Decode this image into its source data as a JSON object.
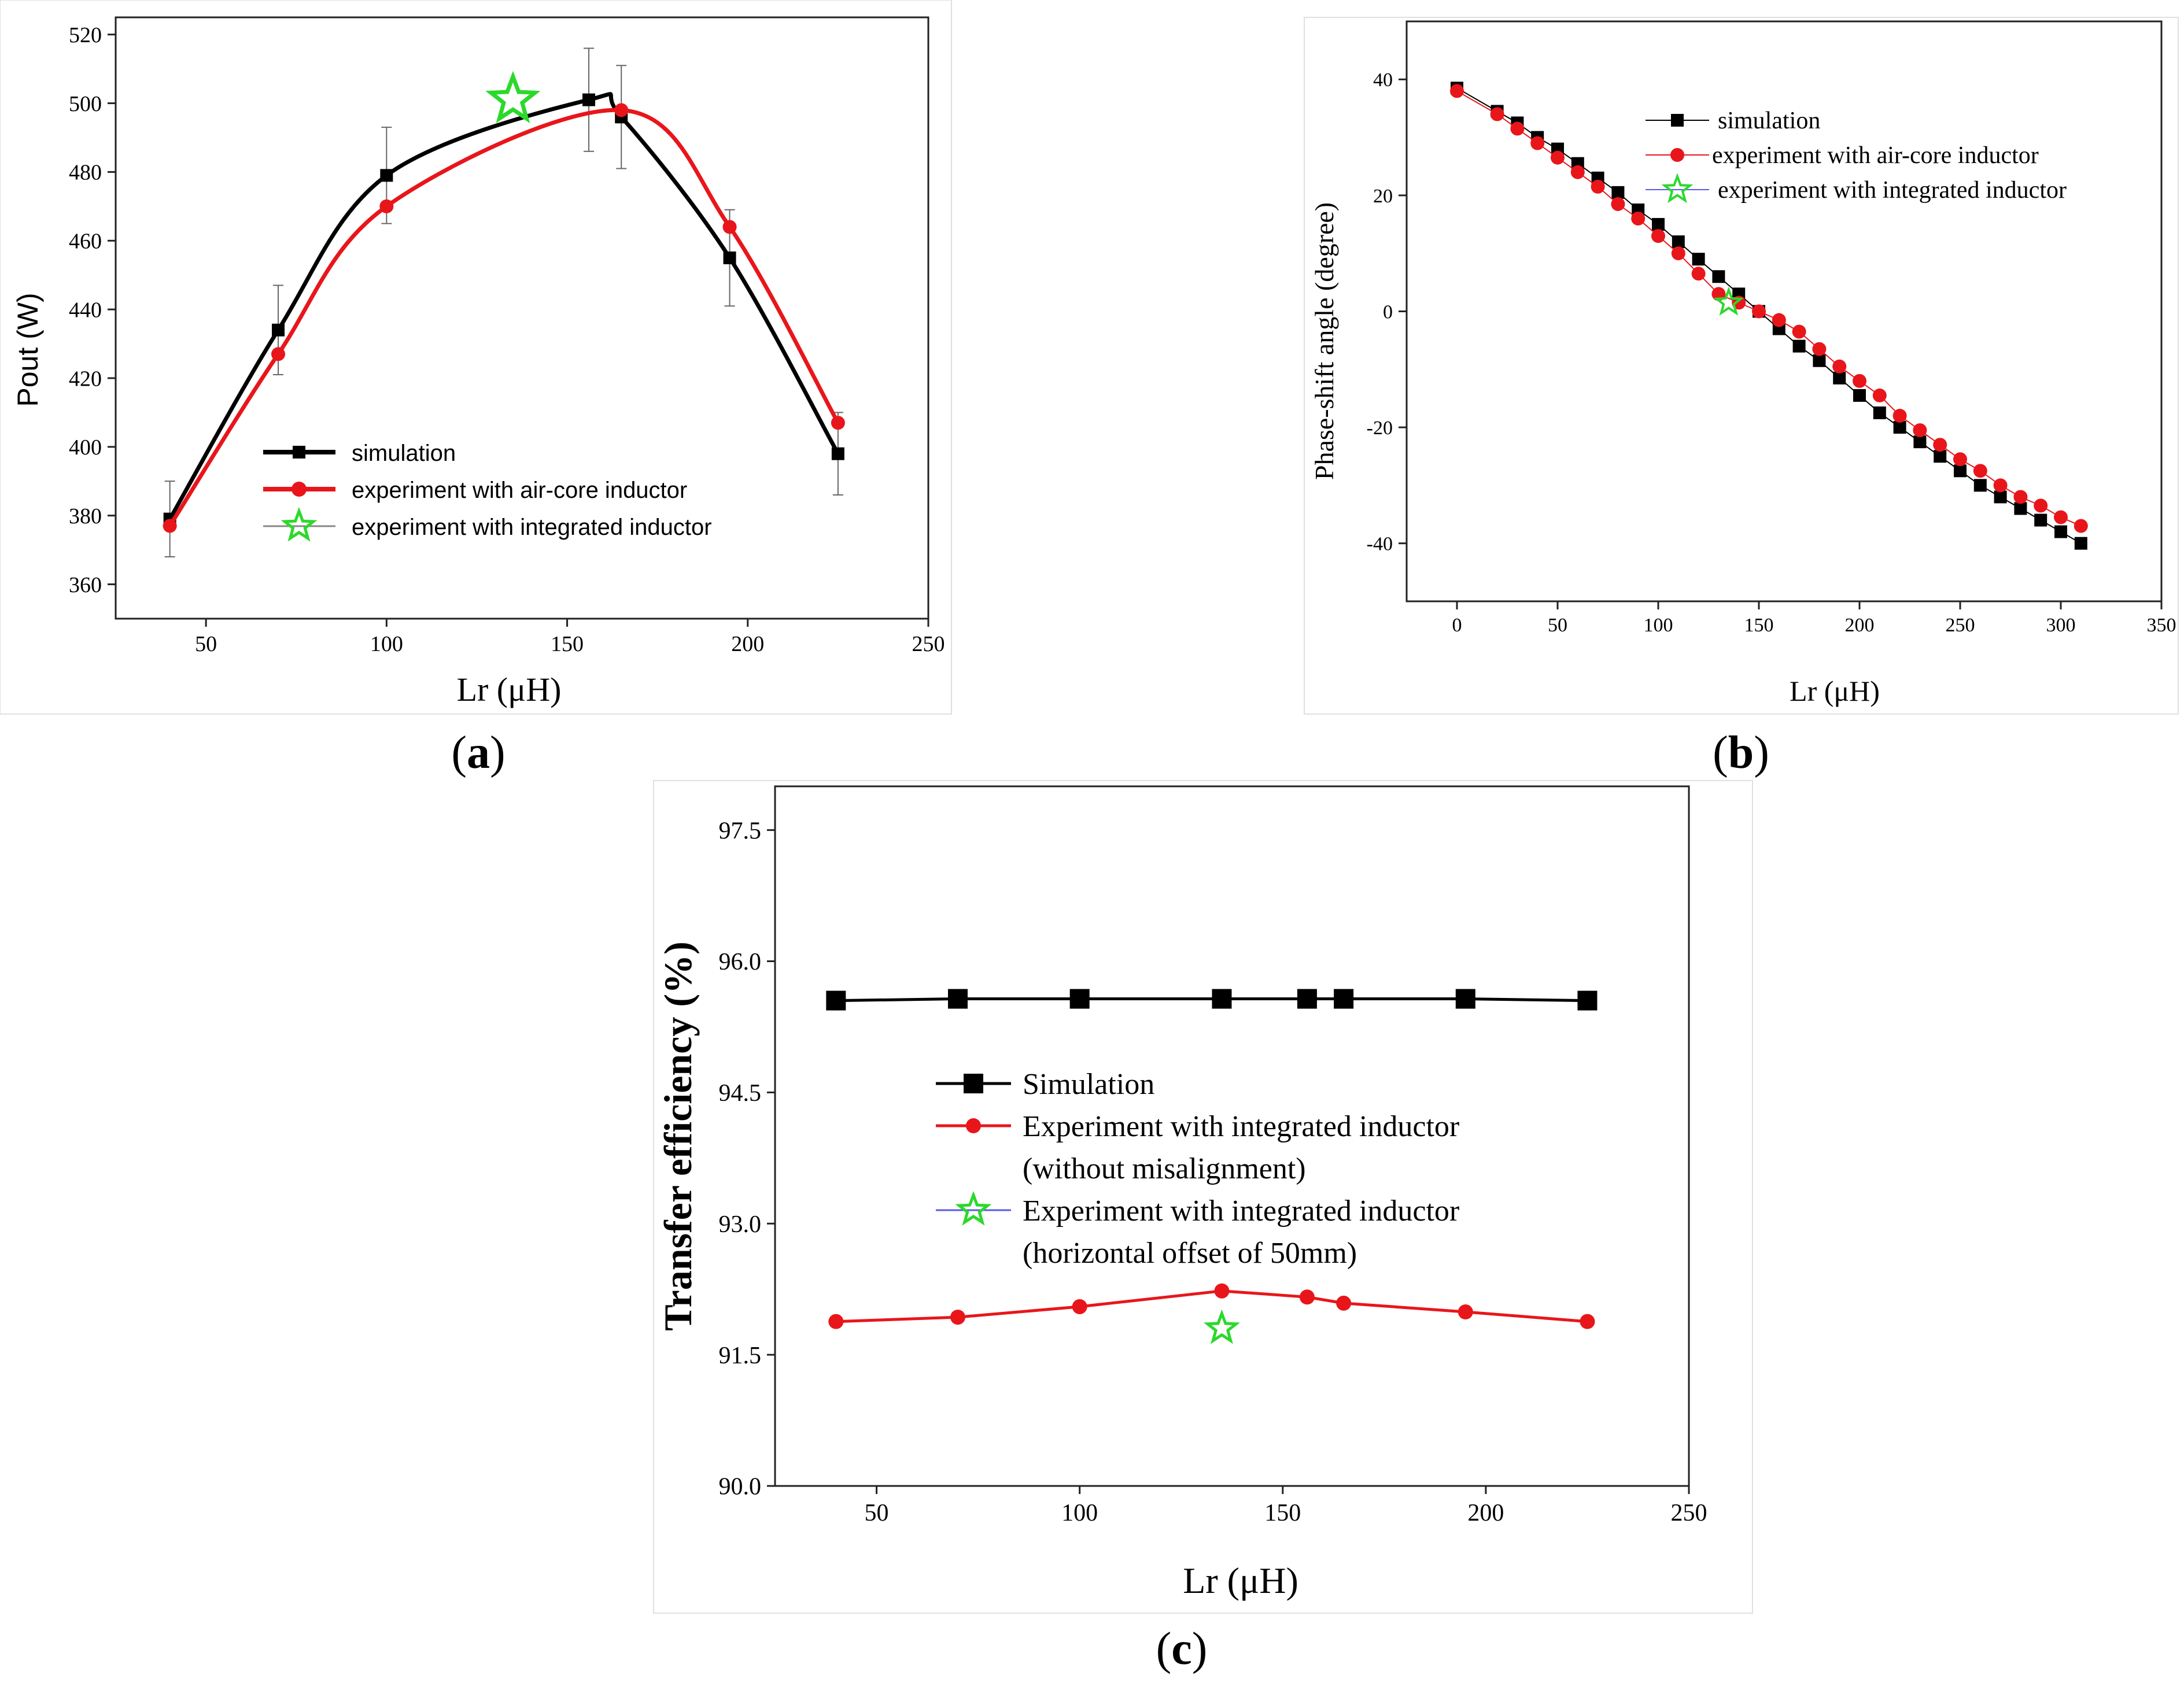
{
  "colors": {
    "simulation": "#000000",
    "air_core": "#e8161b",
    "integrated": "#2bd92b",
    "integrated_line": "#5a5ae6",
    "errorbar": "#666666"
  },
  "chart_data": [
    {
      "id": "a",
      "type": "line",
      "panel_label": "a",
      "xlabel": "Lr (μH)",
      "ylabel": "Pout (W)",
      "xlim": [
        25,
        250
      ],
      "ylim": [
        350,
        525
      ],
      "xticks": [
        50,
        100,
        150,
        200,
        250
      ],
      "yticks": [
        360,
        380,
        400,
        420,
        440,
        460,
        480,
        500,
        520
      ],
      "legend": [
        "simulation",
        "experiment with air-core inductor",
        "experiment with integrated inductor"
      ],
      "series": [
        {
          "name": "simulation",
          "x": [
            40,
            70,
            100,
            156,
            165,
            195,
            225
          ],
          "y": [
            379,
            434,
            479,
            501,
            496,
            455,
            398
          ],
          "error": [
            11,
            13,
            14,
            15,
            15,
            14,
            12
          ]
        },
        {
          "name": "experiment with air-core inductor",
          "x": [
            40,
            70,
            100,
            165,
            195,
            225
          ],
          "y": [
            377,
            427,
            470,
            498,
            464,
            407
          ]
        },
        {
          "name": "experiment with integrated inductor",
          "x": [
            135
          ],
          "y": [
            501
          ]
        }
      ]
    },
    {
      "id": "b",
      "type": "line",
      "panel_label": "b",
      "xlabel": "Lr (μH)",
      "ylabel": "Phase-shift angle (degree)",
      "xlim": [
        -25,
        350
      ],
      "ylim": [
        -50,
        50
      ],
      "xticks": [
        0,
        50,
        100,
        150,
        200,
        250,
        300,
        350
      ],
      "yticks": [
        -40,
        -20,
        0,
        20,
        40
      ],
      "legend": [
        "simulation",
        "experiment with air-core inductor",
        "experiment with integrated inductor"
      ],
      "series": [
        {
          "name": "simulation",
          "x": [
            0,
            20,
            30,
            40,
            50,
            60,
            70,
            80,
            90,
            100,
            110,
            120,
            130,
            140,
            150,
            160,
            170,
            180,
            190,
            200,
            210,
            220,
            230,
            240,
            250,
            260,
            270,
            280,
            290,
            300,
            310
          ],
          "y": [
            38.5,
            34.5,
            32.5,
            30,
            28,
            25.5,
            23,
            20.5,
            17.5,
            15,
            12,
            9,
            6,
            3,
            0,
            -3,
            -6,
            -8.5,
            -11.5,
            -14.5,
            -17.5,
            -20,
            -22.5,
            -25,
            -27.5,
            -30,
            -32,
            -34,
            -36,
            -38,
            -40
          ]
        },
        {
          "name": "experiment with air-core inductor",
          "x": [
            0,
            20,
            30,
            40,
            50,
            60,
            70,
            80,
            90,
            100,
            110,
            120,
            130,
            140,
            150,
            160,
            170,
            180,
            190,
            200,
            210,
            220,
            230,
            240,
            250,
            260,
            270,
            280,
            290,
            300,
            310
          ],
          "y": [
            38,
            34,
            31.5,
            29,
            26.5,
            24,
            21.5,
            18.5,
            16,
            13,
            10,
            6.5,
            3,
            1.5,
            0,
            -1.5,
            -3.5,
            -6.5,
            -9.5,
            -12,
            -14.5,
            -18,
            -20.5,
            -23,
            -25.5,
            -27.5,
            -30,
            -32,
            -33.5,
            -35.5,
            -37
          ]
        },
        {
          "name": "experiment with integrated inductor",
          "x": [
            135
          ],
          "y": [
            1.5
          ]
        }
      ]
    },
    {
      "id": "c",
      "type": "line",
      "panel_label": "c",
      "xlabel": "Lr (μH)",
      "ylabel": "Transfer efficiency (%)",
      "xlim": [
        25,
        250
      ],
      "ylim": [
        90.0,
        98.0
      ],
      "xticks": [
        50,
        100,
        150,
        200,
        250
      ],
      "yticks": [
        90.0,
        91.5,
        93.0,
        94.5,
        96.0,
        97.5
      ],
      "legend": [
        "Simulation",
        "Experiment with integrated inductor",
        "(without misalignment)",
        "Experiment with integrated inductor",
        "(horizontal offset of 50mm)"
      ],
      "series": [
        {
          "name": "Simulation",
          "x": [
            40,
            70,
            100,
            135,
            156,
            165,
            195,
            225
          ],
          "y": [
            95.55,
            95.57,
            95.57,
            95.57,
            95.57,
            95.57,
            95.57,
            95.55
          ]
        },
        {
          "name": "Experiment with integrated inductor (without misalignment)",
          "x": [
            40,
            70,
            100,
            135,
            156,
            165,
            195,
            225
          ],
          "y": [
            91.88,
            91.93,
            92.05,
            92.23,
            92.16,
            92.09,
            91.99,
            91.88
          ]
        },
        {
          "name": "Experiment with integrated inductor (horizontal offset of 50mm)",
          "x": [
            135
          ],
          "y": [
            91.8
          ]
        }
      ]
    }
  ]
}
